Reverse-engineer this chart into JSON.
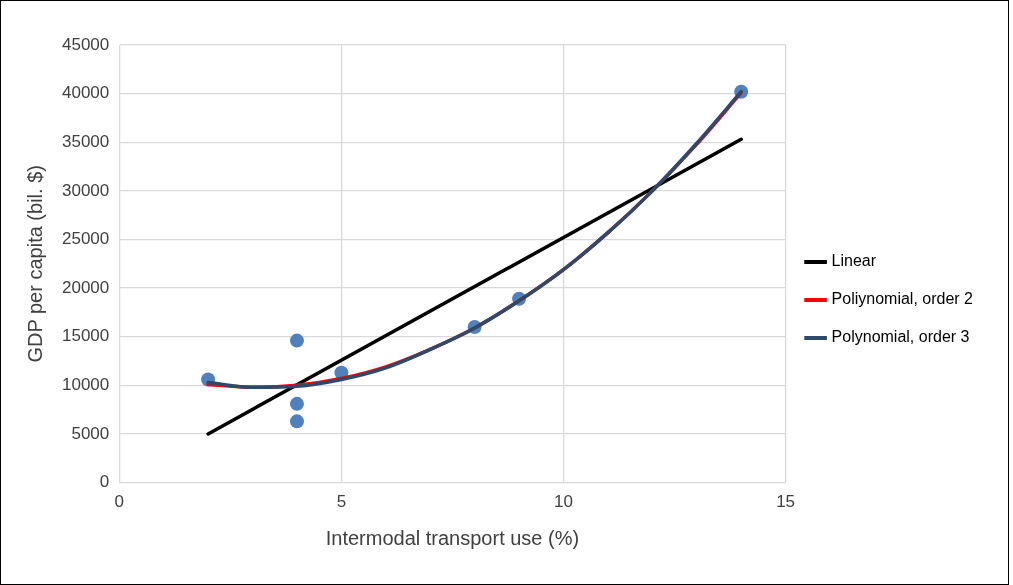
{
  "chart_data": {
    "type": "scatter",
    "xlabel": "Intermodal transport use (%)",
    "ylabel": "GDP per capita (bil. $)",
    "xlim": [
      0,
      15
    ],
    "xticks": [
      0,
      5,
      10,
      15
    ],
    "ylim": [
      0,
      45000
    ],
    "yticks": [
      0,
      5000,
      10000,
      15000,
      20000,
      25000,
      30000,
      35000,
      40000,
      45000
    ],
    "grid": true,
    "legend": "right",
    "series": [
      {
        "marker": "circle",
        "color": "#4f81bd",
        "x": [
          2,
          4,
          4,
          4,
          5,
          8,
          9,
          14
        ],
        "values": [
          10600,
          14600,
          8100,
          6300,
          11300,
          16000,
          18900,
          40200
        ]
      },
      {
        "type": "line",
        "marker": "none",
        "name": "Linear",
        "color": "#000000",
        "x": [
          2,
          14
        ],
        "values": [
          5000,
          35300
        ]
      },
      {
        "type": "line",
        "marker": "none",
        "name": "Poliynomial, order 2",
        "color": "#ff0000",
        "x": [
          2,
          3,
          4,
          5,
          6,
          7,
          8,
          9,
          10,
          11,
          12,
          13,
          14
        ],
        "values": [
          10100,
          9800,
          10000,
          10700,
          11900,
          13700,
          15900,
          18700,
          21900,
          25700,
          30000,
          34800,
          40100
        ]
      },
      {
        "type": "line",
        "marker": "none",
        "name": "Polynomial, order 3",
        "color": "#2e4a6b",
        "x": [
          2,
          3,
          4,
          5,
          6,
          7,
          8,
          9,
          10,
          11,
          12,
          13,
          14
        ],
        "values": [
          10300,
          9800,
          9900,
          10600,
          11800,
          13700,
          15900,
          18700,
          21900,
          25700,
          30000,
          34900,
          40200
        ]
      }
    ]
  }
}
